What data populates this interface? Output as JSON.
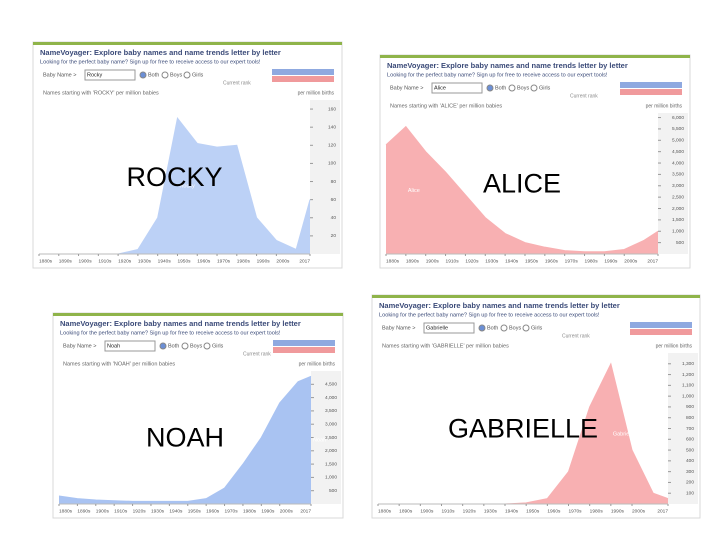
{
  "chart_data": [
    {
      "type": "area",
      "title": "NameVoyager: Explore baby names and name trends letter by letter",
      "subtitle": "Looking for the perfect baby name? Sign up for free to receive access to our expert tools!",
      "search_label": "Baby Name >",
      "search_value": "Rocky",
      "options": [
        "Both",
        "Boys",
        "Girls"
      ],
      "rank_label": "Current rank",
      "caption": "Names starting with 'ROCKY' per million babies",
      "unit": "per million births",
      "annotation": "ROCKY",
      "x": [
        1880,
        1890,
        1900,
        1910,
        1920,
        1930,
        1940,
        1950,
        1960,
        1970,
        1980,
        1990,
        2000,
        2010,
        2017
      ],
      "xticks": [
        {
          "value": 1880,
          "label": "1880s"
        },
        {
          "value": 1890,
          "label": "1890s"
        },
        {
          "value": 1900,
          "label": "1900s"
        },
        {
          "value": 1910,
          "label": "1910s"
        },
        {
          "value": 1920,
          "label": "1920s"
        },
        {
          "value": 1930,
          "label": "1930s"
        },
        {
          "value": 1940,
          "label": "1940s"
        },
        {
          "value": 1950,
          "label": "1950s"
        },
        {
          "value": 1960,
          "label": "1960s"
        },
        {
          "value": 1970,
          "label": "1970s"
        },
        {
          "value": 1980,
          "label": "1980s"
        },
        {
          "value": 1990,
          "label": "1990s"
        },
        {
          "value": 2000,
          "label": "2000s"
        },
        2017
      ],
      "xlim": [
        1880,
        2017
      ],
      "ylim": [
        0,
        170
      ],
      "yticks": [
        20,
        40,
        60,
        80,
        100,
        120,
        140,
        160
      ],
      "series": [
        {
          "name": "Rocky",
          "color": "#bcd1f6",
          "values": [
            0,
            0,
            0,
            0,
            0,
            5,
            40,
            150,
            122,
            118,
            120,
            40,
            15,
            5,
            60
          ]
        }
      ]
    },
    {
      "type": "area",
      "title": "NameVoyager: Explore baby names and name trends letter by letter",
      "subtitle": "Looking for the perfect baby name? Sign up for free to receive access to our expert tools!",
      "search_label": "Baby Name >",
      "search_value": "Alice",
      "options": [
        "Both",
        "Boys",
        "Girls"
      ],
      "rank_label": "Current rank",
      "caption": "Names starting with 'ALICE' per million babies",
      "unit": "per million births",
      "annotation": "ALICE",
      "x": [
        1880,
        1890,
        1900,
        1910,
        1920,
        1930,
        1940,
        1950,
        1960,
        1970,
        1980,
        1990,
        2000,
        2010,
        2017
      ],
      "xticks": [
        {
          "value": 1880,
          "label": "1880s"
        },
        {
          "value": 1890,
          "label": "1890s"
        },
        {
          "value": 1900,
          "label": "1900s"
        },
        {
          "value": 1910,
          "label": "1910s"
        },
        {
          "value": 1920,
          "label": "1920s"
        },
        {
          "value": 1930,
          "label": "1930s"
        },
        {
          "value": 1940,
          "label": "1940s"
        },
        {
          "value": 1950,
          "label": "1950s"
        },
        {
          "value": 1960,
          "label": "1960s"
        },
        {
          "value": 1970,
          "label": "1970s"
        },
        {
          "value": 1980,
          "label": "1980s"
        },
        {
          "value": 1990,
          "label": "1990s"
        },
        {
          "value": 2000,
          "label": "2000s"
        },
        2017
      ],
      "xlim": [
        1880,
        2017
      ],
      "ylim": [
        0,
        6200
      ],
      "yticks": [
        500,
        {
          "value": 1000,
          "label": "1,000"
        },
        {
          "value": 1500,
          "label": "1,500"
        },
        {
          "value": 2000,
          "label": "2,000"
        },
        {
          "value": 2500,
          "label": "2,500"
        },
        {
          "value": 3000,
          "label": "3,000"
        },
        {
          "value": 3500,
          "label": "3,500"
        },
        {
          "value": 4000,
          "label": "4,000"
        },
        {
          "value": 4500,
          "label": "4,500"
        },
        {
          "value": 5000,
          "label": "5,000"
        },
        {
          "value": 5500,
          "label": "5,500"
        },
        {
          "value": 6000,
          "label": "6,000"
        }
      ],
      "series": [
        {
          "name": "Alice",
          "color": "#f8b0b2",
          "values": [
            4800,
            5600,
            4500,
            3600,
            2600,
            1600,
            900,
            500,
            300,
            150,
            100,
            100,
            200,
            600,
            1000
          ]
        }
      ]
    },
    {
      "type": "area",
      "title": "NameVoyager: Explore baby names and name trends letter by letter",
      "subtitle": "Looking for the perfect baby name? Sign up for free to receive access to our expert tools!",
      "search_label": "Baby Name >",
      "search_value": "Noah",
      "options": [
        "Both",
        "Boys",
        "Girls"
      ],
      "rank_label": "Current rank",
      "caption": "Names starting with 'NOAH' per million babies",
      "unit": "per million births",
      "annotation": "NOAH",
      "x": [
        1880,
        1890,
        1900,
        1910,
        1920,
        1930,
        1940,
        1950,
        1960,
        1970,
        1980,
        1990,
        2000,
        2010,
        2017
      ],
      "xticks": [
        {
          "value": 1880,
          "label": "1880s"
        },
        {
          "value": 1890,
          "label": "1890s"
        },
        {
          "value": 1900,
          "label": "1900s"
        },
        {
          "value": 1910,
          "label": "1910s"
        },
        {
          "value": 1920,
          "label": "1920s"
        },
        {
          "value": 1930,
          "label": "1930s"
        },
        {
          "value": 1940,
          "label": "1940s"
        },
        {
          "value": 1950,
          "label": "1950s"
        },
        {
          "value": 1960,
          "label": "1960s"
        },
        {
          "value": 1970,
          "label": "1970s"
        },
        {
          "value": 1980,
          "label": "1980s"
        },
        {
          "value": 1990,
          "label": "1990s"
        },
        {
          "value": 2000,
          "label": "2000s"
        },
        2017
      ],
      "xlim": [
        1880,
        2017
      ],
      "ylim": [
        0,
        5000
      ],
      "yticks": [
        500,
        {
          "value": 1000,
          "label": "1,000"
        },
        {
          "value": 1500,
          "label": "1,500"
        },
        {
          "value": 2000,
          "label": "2,000"
        },
        {
          "value": 2500,
          "label": "2,500"
        },
        {
          "value": 3000,
          "label": "3,000"
        },
        {
          "value": 3500,
          "label": "3,500"
        },
        {
          "value": 4000,
          "label": "4,000"
        },
        {
          "value": 4500,
          "label": "4,500"
        }
      ],
      "series": [
        {
          "name": "Noah",
          "color": "#a9c3f2",
          "values": [
            300,
            200,
            150,
            120,
            100,
            100,
            100,
            100,
            200,
            600,
            1500,
            2500,
            3800,
            4600,
            4800
          ]
        }
      ]
    },
    {
      "type": "area",
      "title": "NameVoyager: Explore baby names and name trends letter by letter",
      "subtitle": "Looking for the perfect baby name? Sign up for free to receive access to our expert tools!",
      "search_label": "Baby Name >",
      "search_value": "Gabrielle",
      "options": [
        "Both",
        "Boys",
        "Girls"
      ],
      "rank_label": "Current rank",
      "caption": "Names starting with 'GABRIELLE' per million babies",
      "unit": "per million births",
      "annotation": "GABRIELLE",
      "x": [
        1880,
        1890,
        1900,
        1910,
        1920,
        1930,
        1940,
        1950,
        1960,
        1970,
        1980,
        1990,
        2000,
        2010,
        2017
      ],
      "xticks": [
        {
          "value": 1880,
          "label": "1880s"
        },
        {
          "value": 1890,
          "label": "1890s"
        },
        {
          "value": 1900,
          "label": "1900s"
        },
        {
          "value": 1910,
          "label": "1910s"
        },
        {
          "value": 1920,
          "label": "1920s"
        },
        {
          "value": 1930,
          "label": "1930s"
        },
        {
          "value": 1940,
          "label": "1940s"
        },
        {
          "value": 1950,
          "label": "1950s"
        },
        {
          "value": 1960,
          "label": "1960s"
        },
        {
          "value": 1970,
          "label": "1970s"
        },
        {
          "value": 1980,
          "label": "1980s"
        },
        {
          "value": 1990,
          "label": "1990s"
        },
        {
          "value": 2000,
          "label": "2000s"
        },
        2017
      ],
      "xlim": [
        1880,
        2017
      ],
      "ylim": [
        0,
        1400
      ],
      "yticks": [
        100,
        200,
        300,
        400,
        500,
        600,
        700,
        800,
        900,
        {
          "value": 1000,
          "label": "1,000"
        },
        {
          "value": 1100,
          "label": "1,100"
        },
        {
          "value": 1200,
          "label": "1,200"
        },
        {
          "value": 1300,
          "label": "1,300"
        }
      ],
      "series": [
        {
          "name": "Gabrielle",
          "color": "#f8b0b2",
          "values": [
            0,
            0,
            0,
            0,
            0,
            0,
            0,
            10,
            50,
            300,
            900,
            1300,
            500,
            100,
            50
          ]
        }
      ]
    }
  ]
}
